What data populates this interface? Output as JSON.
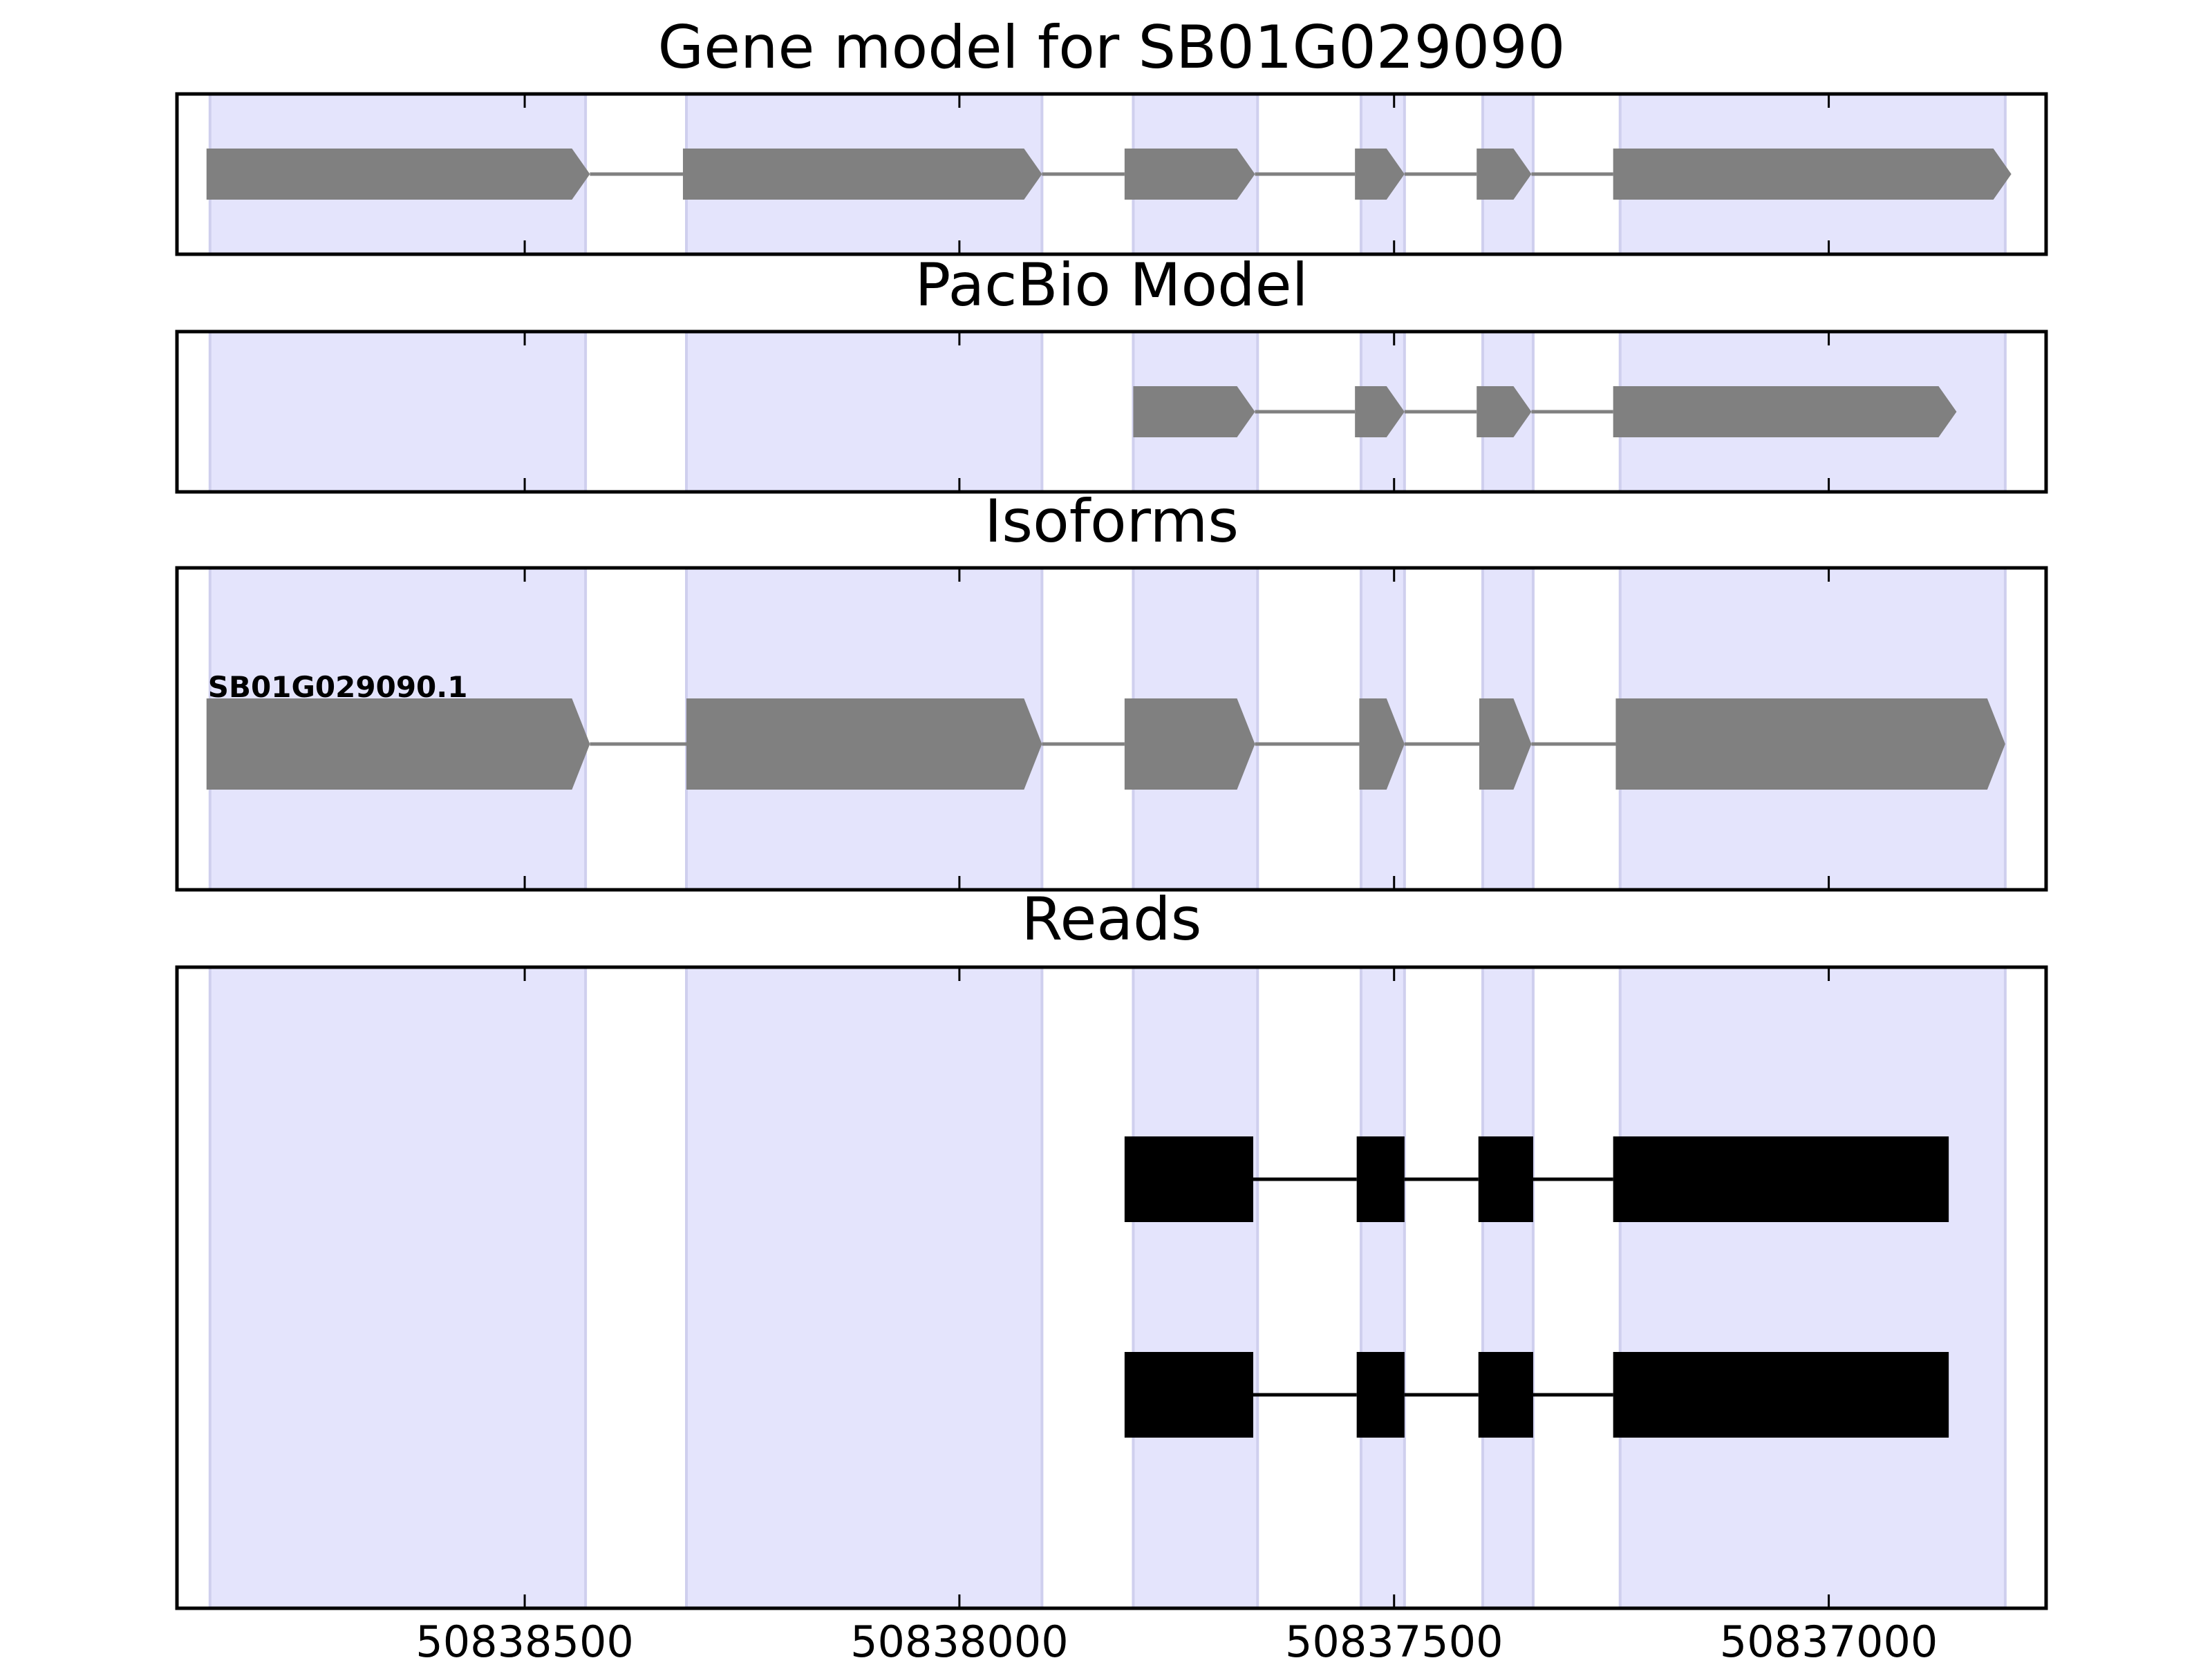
{
  "chart_data": {
    "type": "gene-track",
    "x_reversed": true,
    "xlim": [
      50838900,
      50836750
    ],
    "x_ticks": [
      50838500,
      50838000,
      50837500,
      50837000
    ],
    "x_tick_labels": [
      "50838500",
      "50838000",
      "50837500",
      "50837000"
    ],
    "highlight_color": "#e4e4fc",
    "feature_color": "#808080",
    "read_color": "#000000",
    "exon_regions": [
      [
        50838862,
        50838430
      ],
      [
        50838314,
        50837905
      ],
      [
        50837800,
        50837657
      ],
      [
        50837538,
        50837488
      ],
      [
        50837398,
        50837340
      ],
      [
        50837240,
        50836797
      ]
    ],
    "panels": [
      {
        "title": "Gene model for SB01G029090",
        "kind": "gene",
        "features": [
          {
            "label": "",
            "exons": [
              [
                50838866,
                50838425
              ],
              [
                50838318,
                50837905
              ],
              [
                50837810,
                50837660
              ],
              [
                50837545,
                50837488
              ],
              [
                50837405,
                50837342
              ],
              [
                50837248,
                50836790
              ]
            ]
          }
        ]
      },
      {
        "title": "PacBio Model",
        "kind": "gene",
        "features": [
          {
            "label": "",
            "exons": [
              [
                50837800,
                50837660
              ],
              [
                50837545,
                50837488
              ],
              [
                50837405,
                50837342
              ],
              [
                50837248,
                50836853
              ]
            ]
          }
        ]
      },
      {
        "title": "Isoforms",
        "kind": "gene",
        "features": [
          {
            "label": "SB01G029090.1",
            "exons": [
              [
                50838866,
                50838425
              ],
              [
                50838314,
                50837905
              ],
              [
                50837810,
                50837660
              ],
              [
                50837540,
                50837488
              ],
              [
                50837402,
                50837342
              ],
              [
                50837245,
                50836797
              ]
            ]
          }
        ]
      },
      {
        "title": "Reads",
        "kind": "reads",
        "features": [
          {
            "label": "",
            "exons": [
              [
                50837810,
                50837662
              ],
              [
                50837543,
                50837488
              ],
              [
                50837403,
                50837340
              ],
              [
                50837248,
                50836862
              ]
            ]
          },
          {
            "label": "",
            "exons": [
              [
                50837810,
                50837662
              ],
              [
                50837543,
                50837488
              ],
              [
                50837403,
                50837340
              ],
              [
                50837248,
                50836862
              ]
            ]
          }
        ]
      }
    ]
  }
}
